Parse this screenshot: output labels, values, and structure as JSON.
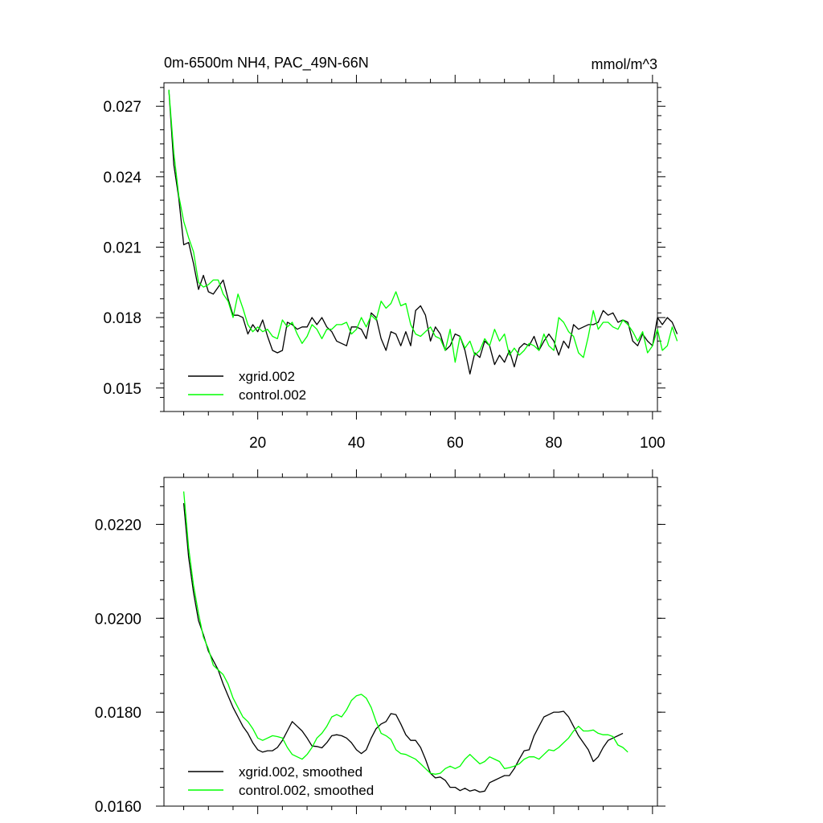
{
  "chart_data": [
    {
      "type": "line",
      "title_left": "0m-6500m NH4, PAC_49N-66N",
      "title_right": "mmol/m^3",
      "xlabel": "",
      "ylabel": "",
      "xlim": [
        1,
        101
      ],
      "ylim": [
        0.014,
        0.028
      ],
      "x_ticks": [
        20,
        40,
        60,
        80,
        100
      ],
      "x_tick_labels": [
        "20",
        "40",
        "60",
        "80",
        "100"
      ],
      "y_ticks": [
        0.015,
        0.018,
        0.021,
        0.024,
        0.027
      ],
      "y_tick_labels": [
        "0.015",
        "0.018",
        "0.021",
        "0.024",
        "0.027"
      ],
      "legend": "bottom-left",
      "x_start": 2,
      "series": [
        {
          "name": "xgrid.002",
          "color": "#000000",
          "values": [
            0.0277,
            0.0245,
            0.0231,
            0.0211,
            0.0212,
            0.0203,
            0.0192,
            0.0198,
            0.0191,
            0.019,
            0.0193,
            0.0196,
            0.0188,
            0.0181,
            0.0181,
            0.018,
            0.0173,
            0.0177,
            0.0174,
            0.0179,
            0.0172,
            0.0166,
            0.0165,
            0.0166,
            0.0178,
            0.0177,
            0.0175,
            0.0176,
            0.0176,
            0.018,
            0.0177,
            0.018,
            0.0176,
            0.0174,
            0.017,
            0.0169,
            0.0168,
            0.0176,
            0.0176,
            0.0175,
            0.0171,
            0.0182,
            0.018,
            0.0171,
            0.0166,
            0.0174,
            0.0173,
            0.0168,
            0.0174,
            0.0168,
            0.0183,
            0.0185,
            0.0181,
            0.017,
            0.0176,
            0.0173,
            0.0166,
            0.0168,
            0.0173,
            0.0172,
            0.0166,
            0.0156,
            0.0165,
            0.0163,
            0.017,
            0.0168,
            0.016,
            0.0164,
            0.0161,
            0.0166,
            0.0159,
            0.0167,
            0.0169,
            0.0168,
            0.0172,
            0.0166,
            0.017,
            0.0173,
            0.017,
            0.0164,
            0.017,
            0.0167,
            0.0177,
            0.0175,
            0.0176,
            0.0177,
            0.0177,
            0.0178,
            0.0183,
            0.0181,
            0.0182,
            0.0178,
            0.0179,
            0.0178,
            0.017,
            0.0168,
            0.0173,
            0.017,
            0.0168,
            0.018,
            0.0177,
            0.018,
            0.0178,
            0.0173
          ]
        },
        {
          "name": "control.002",
          "color": "#00ff00",
          "values": [
            0.0277,
            0.025,
            0.0232,
            0.0221,
            0.0214,
            0.0208,
            0.0195,
            0.0193,
            0.0194,
            0.0196,
            0.0196,
            0.019,
            0.0187,
            0.018,
            0.019,
            0.0184,
            0.0177,
            0.0174,
            0.0176,
            0.0174,
            0.0175,
            0.0172,
            0.0171,
            0.0179,
            0.0176,
            0.0178,
            0.0173,
            0.0169,
            0.0172,
            0.0177,
            0.0175,
            0.0171,
            0.0175,
            0.0175,
            0.0177,
            0.0177,
            0.0178,
            0.0173,
            0.0175,
            0.018,
            0.0176,
            0.0181,
            0.0179,
            0.0187,
            0.0184,
            0.0186,
            0.0191,
            0.0185,
            0.0186,
            0.0177,
            0.0173,
            0.0172,
            0.0174,
            0.0176,
            0.0172,
            0.0171,
            0.0166,
            0.0175,
            0.0161,
            0.0172,
            0.0167,
            0.017,
            0.0164,
            0.0166,
            0.0171,
            0.0168,
            0.0175,
            0.017,
            0.0173,
            0.0164,
            0.0167,
            0.0164,
            0.0166,
            0.0169,
            0.0168,
            0.0166,
            0.0173,
            0.0168,
            0.0166,
            0.018,
            0.0178,
            0.0174,
            0.0172,
            0.0165,
            0.0163,
            0.0172,
            0.0183,
            0.0175,
            0.0178,
            0.0178,
            0.0176,
            0.0175,
            0.0179,
            0.0177,
            0.0174,
            0.017,
            0.0174,
            0.0165,
            0.0168,
            0.0175,
            0.0166,
            0.0168,
            0.0176,
            0.017
          ]
        }
      ]
    },
    {
      "type": "line",
      "xlabel": "",
      "ylabel": "",
      "xlim": [
        1,
        101
      ],
      "ylim": [
        0.016,
        0.023
      ],
      "x_ticks": [
        20,
        40,
        60,
        80,
        100
      ],
      "x_tick_labels": [],
      "y_ticks": [
        0.016,
        0.018,
        0.02,
        0.022
      ],
      "y_tick_labels": [
        "0.0160",
        "0.0180",
        "0.0200",
        "0.0220"
      ],
      "legend": "bottom-left",
      "x_start": 5,
      "series": [
        {
          "name": "xgrid.002, smoothed",
          "color": "#000000",
          "values": [
            0.02245,
            0.0213,
            0.02055,
            0.01995,
            0.01965,
            0.0193,
            0.0191,
            0.0189,
            0.0186,
            0.01835,
            0.0181,
            0.0179,
            0.0177,
            0.01755,
            0.01735,
            0.0172,
            0.01715,
            0.01718,
            0.01718,
            0.01725,
            0.0174,
            0.0176,
            0.0178,
            0.0177,
            0.0176,
            0.01745,
            0.01728,
            0.01727,
            0.01724,
            0.01735,
            0.0175,
            0.01752,
            0.0175,
            0.01745,
            0.01735,
            0.0172,
            0.01712,
            0.0172,
            0.01745,
            0.01765,
            0.01775,
            0.0178,
            0.01797,
            0.01795,
            0.01775,
            0.01752,
            0.0174,
            0.0174,
            0.01725,
            0.017,
            0.0167,
            0.0166,
            0.01662,
            0.01655,
            0.0164,
            0.0164,
            0.01633,
            0.01638,
            0.01632,
            0.01635,
            0.0163,
            0.01632,
            0.0165,
            0.01655,
            0.0166,
            0.01665,
            0.01665,
            0.0168,
            0.017,
            0.01718,
            0.0172,
            0.0175,
            0.0177,
            0.0179,
            0.01795,
            0.018,
            0.018,
            0.01802,
            0.0179,
            0.0177,
            0.0175,
            0.01735,
            0.0172,
            0.01695,
            0.01705,
            0.01725,
            0.0174,
            0.01745,
            0.0175,
            0.01755
          ]
        },
        {
          "name": "control.002, smoothed",
          "color": "#00ff00",
          "values": [
            0.0227,
            0.0215,
            0.0207,
            0.0201,
            0.0196,
            0.01935,
            0.019,
            0.0189,
            0.0188,
            0.0186,
            0.0183,
            0.0181,
            0.0179,
            0.0178,
            0.01765,
            0.01745,
            0.0174,
            0.01745,
            0.0175,
            0.01748,
            0.01745,
            0.01725,
            0.0171,
            0.01705,
            0.017,
            0.0171,
            0.01725,
            0.01745,
            0.01755,
            0.0177,
            0.0179,
            0.01795,
            0.0179,
            0.01805,
            0.01825,
            0.01835,
            0.01838,
            0.0183,
            0.0181,
            0.0178,
            0.01755,
            0.0175,
            0.01742,
            0.0172,
            0.01712,
            0.0171,
            0.01705,
            0.017,
            0.0169,
            0.0168,
            0.0167,
            0.01668,
            0.0167,
            0.0168,
            0.01685,
            0.0168,
            0.01685,
            0.017,
            0.0171,
            0.017,
            0.0169,
            0.01695,
            0.01705,
            0.017,
            0.01695,
            0.0168,
            0.01682,
            0.01685,
            0.0169,
            0.017,
            0.01705,
            0.01705,
            0.017,
            0.0171,
            0.0172,
            0.01718,
            0.01725,
            0.01735,
            0.01745,
            0.0176,
            0.0177,
            0.0176,
            0.0176,
            0.01762,
            0.01755,
            0.01752,
            0.01752,
            0.01748,
            0.0173,
            0.01725,
            0.01715
          ]
        }
      ]
    }
  ]
}
